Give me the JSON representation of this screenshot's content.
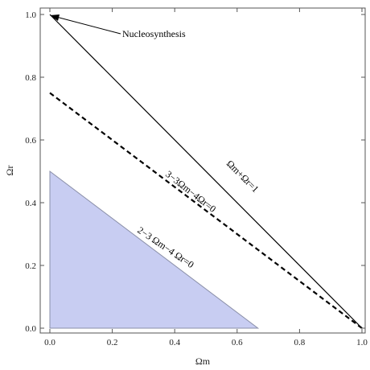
{
  "chart_data": {
    "type": "line",
    "xlabel": "Ωm",
    "ylabel": "Ωr",
    "xlim": [
      0,
      1.0
    ],
    "ylim": [
      0,
      1.0
    ],
    "x_ticks": [
      "0.0",
      "0.2",
      "0.4",
      "0.6",
      "0.8",
      "1.0"
    ],
    "y_ticks": [
      "0.0",
      "0.2",
      "0.4",
      "0.6",
      "0.8",
      "1.0"
    ],
    "grid": false,
    "series": [
      {
        "name": "Ωm+Ωr=1",
        "style": "solid",
        "color": "#000000",
        "points": [
          [
            0,
            1.0
          ],
          [
            1.0,
            0
          ]
        ]
      },
      {
        "name": "3−3Ωm−4Ωr=0",
        "style": "dashed",
        "color": "#000000",
        "points": [
          [
            0,
            0.75
          ],
          [
            1.0,
            0
          ]
        ]
      }
    ],
    "region": {
      "name": "2−3 Ωm−4 Ωr=0",
      "color": "#c8cdf2",
      "edge_color": "#8a8fa8",
      "points": [
        [
          0,
          0
        ],
        [
          0,
          0.5
        ],
        [
          0.6667,
          0
        ]
      ]
    },
    "annotation": {
      "text": "Nucleosynthesis",
      "target": [
        0,
        1.0
      ]
    }
  }
}
